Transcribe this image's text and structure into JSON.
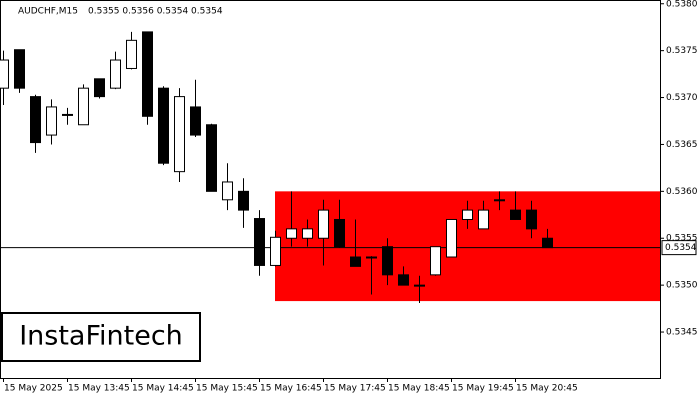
{
  "chart_data": {
    "type": "candlestick",
    "title": "AUDCHF,M15",
    "info": "0.5355 0.5356 0.5354 0.5354",
    "watermark": "InstaFintech",
    "categories": [
      "15 May 2025",
      null,
      null,
      null,
      "15 May 13:45",
      null,
      null,
      null,
      "15 May 14:45",
      null,
      null,
      null,
      "15 May 15:45",
      null,
      null,
      null,
      "15 May 16:45",
      null,
      null,
      null,
      "15 May 17:45",
      null,
      null,
      null,
      "15 May 18:45",
      null,
      null,
      null,
      "15 May 19:45",
      null,
      null,
      null,
      "15 May 20:45",
      null,
      null
    ],
    "open": [
      0.5371,
      0.53751,
      0.53701,
      0.5366,
      0.53682,
      0.53671,
      0.5372,
      0.5371,
      0.53731,
      0.5377,
      0.5371,
      0.53621,
      0.5369,
      0.53671,
      0.53591,
      0.536,
      0.53571,
      0.53521,
      0.5355,
      0.5355,
      0.5355,
      0.5357,
      0.5353,
      0.5353,
      0.53541,
      0.53511,
      0.535,
      0.53511,
      0.5353,
      0.5357,
      0.5356,
      0.53591,
      0.5358,
      0.5358,
      0.5355
    ],
    "high": [
      0.5375,
      0.53751,
      0.53703,
      0.53698,
      0.53689,
      0.53714,
      0.5372,
      0.53749,
      0.5377,
      0.5377,
      0.53712,
      0.5371,
      0.53719,
      0.53672,
      0.5363,
      0.53614,
      0.5358,
      0.53558,
      0.536,
      0.5357,
      0.53591,
      0.53591,
      0.5357,
      0.53531,
      0.5355,
      0.5352,
      0.5351,
      0.53541,
      0.5357,
      0.5359,
      0.5359,
      0.536,
      0.536,
      0.5359,
      0.5356
    ],
    "low": [
      0.53692,
      0.53705,
      0.53641,
      0.5365,
      0.53671,
      0.53671,
      0.53699,
      0.53709,
      0.5373,
      0.53671,
      0.53628,
      0.5361,
      0.53658,
      0.536,
      0.5358,
      0.53561,
      0.5351,
      0.5352,
      0.53541,
      0.53541,
      0.53521,
      0.5354,
      0.5352,
      0.5349,
      0.535,
      0.535,
      0.53481,
      0.5351,
      0.5353,
      0.5356,
      0.5356,
      0.5358,
      0.5357,
      0.5355,
      0.5354
    ],
    "close": [
      0.5374,
      0.5371,
      0.53652,
      0.5369,
      0.53682,
      0.5371,
      0.53701,
      0.5374,
      0.53761,
      0.5368,
      0.5363,
      0.53701,
      0.5366,
      0.536,
      0.5361,
      0.5358,
      0.53521,
      0.53551,
      0.5356,
      0.5356,
      0.5358,
      0.53541,
      0.5352,
      0.5353,
      0.53511,
      0.535,
      0.535,
      0.53541,
      0.5357,
      0.5358,
      0.5358,
      0.53591,
      0.5357,
      0.5356,
      0.5354
    ],
    "up_color": "#ffffff",
    "down_color": "#000000",
    "zone": {
      "start_index": 17,
      "top": 0.536,
      "bottom": 0.53483,
      "color": "#ff0000"
    },
    "last_price": {
      "value": 0.5354,
      "label": "0.5354"
    },
    "ylim": [
      0.53401,
      0.53804
    ],
    "yticks": [
      0.5345,
      {
        "value": 0.535,
        "label": "0.5350"
      },
      0.5355,
      {
        "value": 0.536,
        "label": "0.5360"
      },
      0.5365,
      {
        "value": 0.537,
        "label": "0.5370"
      },
      0.5375,
      {
        "value": 0.538,
        "label": "0.5380"
      }
    ]
  }
}
